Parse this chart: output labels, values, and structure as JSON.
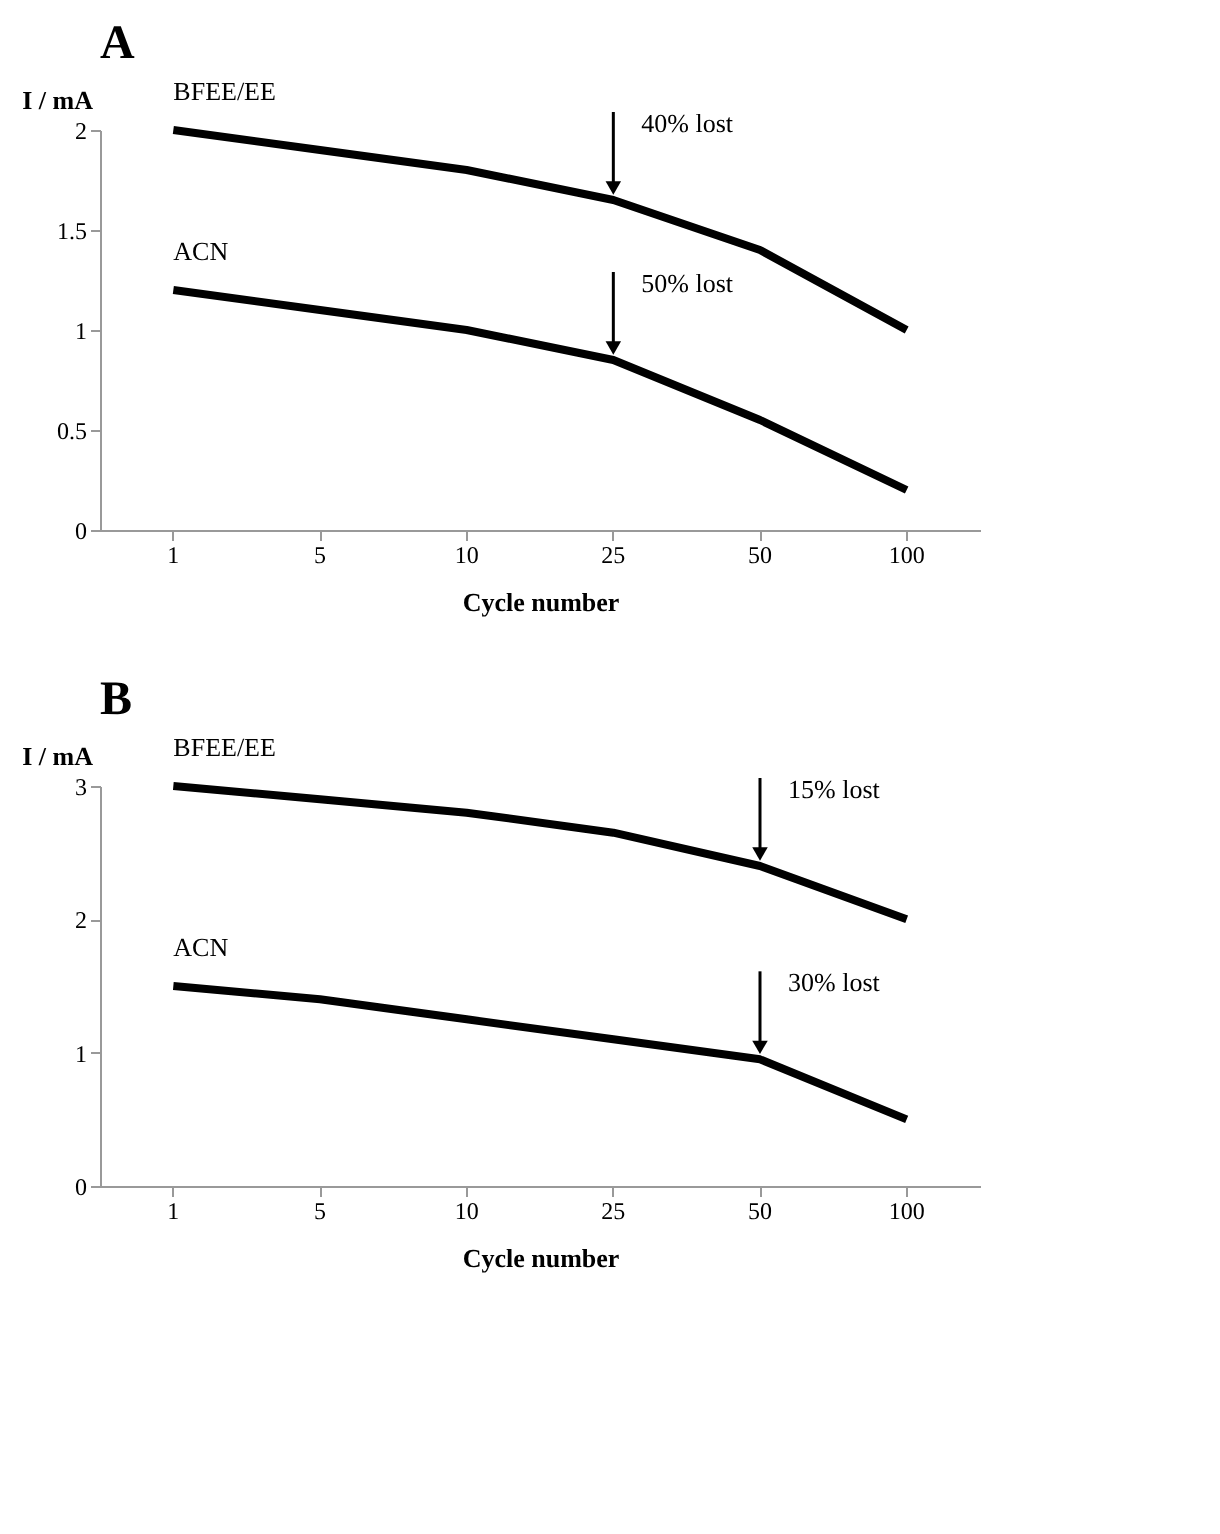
{
  "chart_data": [
    {
      "type": "line",
      "title": "A",
      "xlabel": "Cycle number",
      "ylabel": "I / mA",
      "categories": [
        "1",
        "5",
        "10",
        "25",
        "50",
        "100"
      ],
      "ylim": [
        0,
        2
      ],
      "yticks": [
        0,
        0.5,
        1,
        1.5,
        2
      ],
      "grid": false,
      "marker": "none",
      "series": [
        {
          "name": "BFEE/EE",
          "color": "#000000",
          "values": [
            2.0,
            1.9,
            1.8,
            1.65,
            1.4,
            1.0
          ]
        },
        {
          "name": "ACN",
          "color": "#000000",
          "values": [
            1.2,
            1.1,
            1.0,
            0.85,
            0.55,
            0.2
          ]
        }
      ],
      "annotations": [
        {
          "text": "40% lost",
          "x": "25",
          "y": 1.65
        },
        {
          "text": "50% lost",
          "x": "25",
          "y": 0.85
        }
      ]
    },
    {
      "type": "line",
      "title": "B",
      "xlabel": "Cycle number",
      "ylabel": "I / mA",
      "categories": [
        "1",
        "5",
        "10",
        "25",
        "50",
        "100"
      ],
      "ylim": [
        0,
        3
      ],
      "yticks": [
        0,
        1,
        2,
        3
      ],
      "grid": false,
      "marker": "none",
      "series": [
        {
          "name": "BFEE/EE",
          "color": "#000000",
          "values": [
            3.0,
            2.9,
            2.8,
            2.65,
            2.4,
            2.0
          ]
        },
        {
          "name": "ACN",
          "color": "#000000",
          "values": [
            1.5,
            1.4,
            1.25,
            1.1,
            0.95,
            0.5
          ]
        }
      ],
      "annotations": [
        {
          "text": "15% lost",
          "x": "50",
          "y": 2.4
        },
        {
          "text": "30% lost",
          "x": "50",
          "y": 0.95
        }
      ]
    }
  ]
}
